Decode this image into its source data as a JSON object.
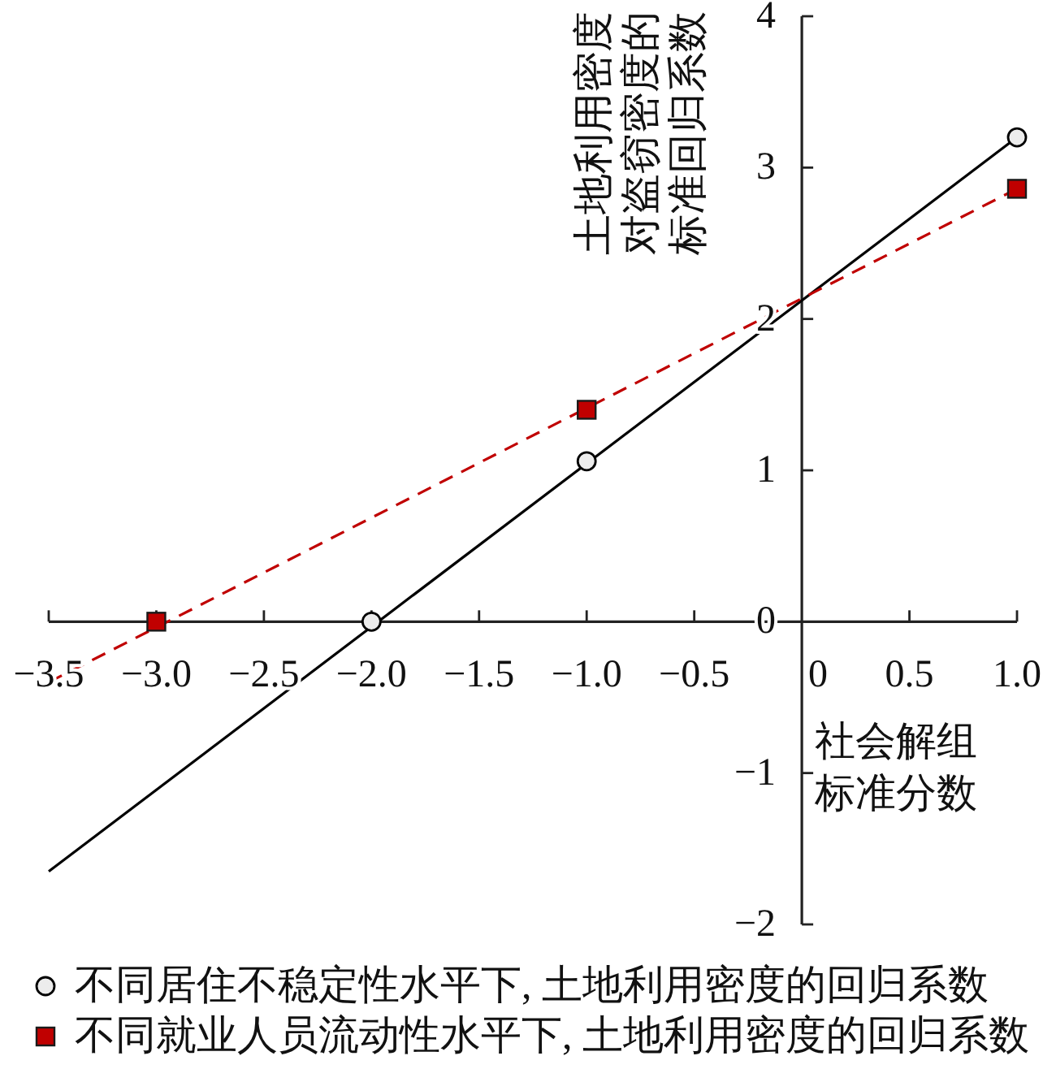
{
  "chart_data": {
    "type": "line",
    "xlabel": "社会解组标准分数",
    "ylabel": "土地利用密度对盗窃密度的标准回归系数",
    "xlim": [
      -3.5,
      1.0
    ],
    "ylim": [
      -2,
      4
    ],
    "xticks": [
      {
        "value": -3.5,
        "label": "−3.5"
      },
      {
        "value": -3,
        "label": "−3.0"
      },
      {
        "value": -2.5,
        "label": "−2.5"
      },
      {
        "value": -2,
        "label": "−2.0"
      },
      {
        "value": -1.5,
        "label": "−1.5"
      },
      {
        "value": -1,
        "label": "−1.0"
      },
      {
        "value": -0.5,
        "label": "−0.5"
      },
      0,
      0.5,
      {
        "value": 1,
        "label": "1.0"
      }
    ],
    "yticks": [
      {
        "value": -2,
        "label": "−2"
      },
      {
        "value": -1,
        "label": "−1"
      },
      0,
      1,
      2,
      3,
      4
    ],
    "legend": "bottom",
    "series": [
      {
        "type": "line",
        "x": [
          -3.5,
          1
        ],
        "values": [
          -1.65,
          3.2
        ],
        "color": "#000000",
        "line_style": "solid",
        "marker": "none"
      },
      {
        "type": "scatter",
        "name": "不同居住不稳定性水平下, 土地利用密度的回归系数",
        "x": [
          -2,
          -1,
          1
        ],
        "values": [
          0,
          1.06,
          3.2
        ],
        "color": "#000000",
        "marker": "circle"
      },
      {
        "type": "line",
        "x": [
          -3.5,
          1
        ],
        "values": [
          -0.4,
          2.86
        ],
        "color": "#c00000",
        "line_style": "dashed",
        "marker": "none"
      },
      {
        "type": "scatter",
        "name": "不同就业人员流动性水平下, 土地利用密度的回归系数",
        "x": [
          -3,
          -1,
          1
        ],
        "values": [
          0,
          1.4,
          2.86
        ],
        "color": "#c00000",
        "marker": "square"
      }
    ]
  }
}
